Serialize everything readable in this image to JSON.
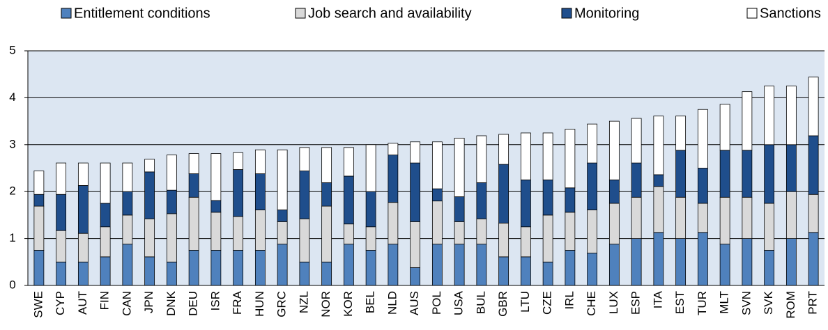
{
  "chart_data": {
    "type": "stacked_bar",
    "categories": [
      "SWE",
      "CYP",
      "AUT",
      "FIN",
      "CAN",
      "JPN",
      "DNK",
      "DEU",
      "ISR",
      "FRA",
      "HUN",
      "GRC",
      "NZL",
      "NOR",
      "KOR",
      "BEL",
      "NLD",
      "AUS",
      "POL",
      "USA",
      "BUL",
      "GBR",
      "LTU",
      "CZE",
      "IRL",
      "CHE",
      "LUX",
      "ESP",
      "ITA",
      "EST",
      "TUR",
      "MLT",
      "SVN",
      "SVK",
      "ROM",
      "PRT"
    ],
    "series": [
      {
        "name": "Entitlement conditions",
        "color": "#4f81bd",
        "values": [
          0.75,
          0.5,
          0.5,
          0.61,
          0.88,
          0.61,
          0.5,
          0.75,
          0.75,
          0.75,
          0.75,
          0.88,
          0.5,
          0.5,
          0.88,
          0.75,
          0.88,
          0.38,
          0.88,
          0.88,
          0.88,
          0.61,
          0.61,
          0.5,
          0.75,
          0.69,
          0.88,
          1.0,
          1.13,
          1.0,
          1.13,
          0.88,
          1.0,
          0.75,
          1.0,
          1.13
        ]
      },
      {
        "name": "Job search and availability",
        "color": "#d9d9d9",
        "values": [
          0.94,
          0.67,
          0.61,
          0.64,
          0.62,
          0.81,
          1.03,
          1.13,
          0.81,
          0.72,
          0.86,
          0.48,
          0.92,
          1.19,
          0.43,
          0.5,
          0.89,
          0.98,
          0.92,
          0.48,
          0.54,
          0.72,
          0.64,
          1.0,
          0.81,
          0.92,
          0.87,
          0.88,
          0.98,
          0.88,
          0.62,
          1.0,
          0.88,
          1.0,
          1.0,
          0.81
        ]
      },
      {
        "name": "Monitoring",
        "color": "#1f4e8c",
        "values": [
          0.25,
          0.77,
          1.02,
          0.5,
          0.5,
          1.0,
          0.5,
          0.5,
          0.25,
          1.0,
          0.77,
          0.25,
          1.02,
          0.5,
          1.02,
          0.75,
          1.01,
          1.25,
          0.26,
          0.53,
          0.77,
          1.25,
          1.0,
          0.75,
          0.52,
          1.0,
          0.5,
          0.73,
          0.25,
          1.0,
          0.75,
          1.0,
          1.0,
          1.25,
          1.0,
          1.25
        ]
      },
      {
        "name": "Sanctions",
        "color": "#ffffff",
        "values": [
          0.5,
          0.67,
          0.48,
          0.86,
          0.61,
          0.27,
          0.75,
          0.43,
          1.0,
          0.36,
          0.51,
          1.28,
          0.5,
          0.75,
          0.61,
          1.0,
          0.25,
          0.45,
          1.0,
          1.25,
          1.0,
          0.64,
          1.0,
          1.0,
          1.25,
          0.83,
          1.25,
          0.95,
          1.25,
          0.73,
          1.25,
          0.98,
          1.25,
          1.25,
          1.25,
          1.25
        ]
      }
    ],
    "ylim": [
      0,
      5
    ],
    "yticks": [
      0,
      1,
      2,
      3,
      4,
      5
    ],
    "grid": true,
    "legend": "top"
  }
}
